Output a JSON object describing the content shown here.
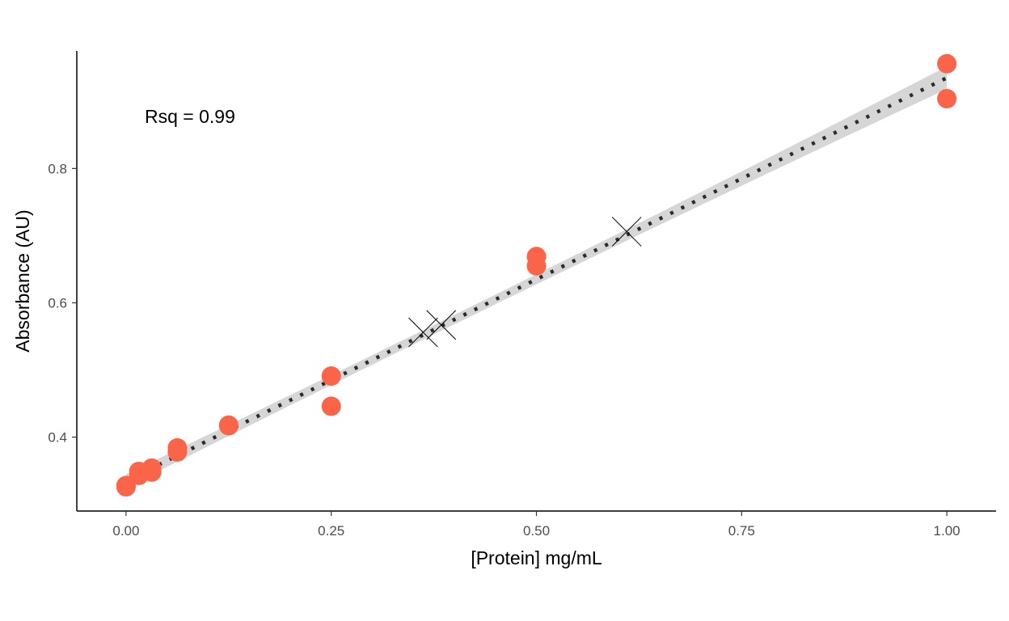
{
  "chart_data": {
    "type": "scatter",
    "xlabel": "[Protein] mg/mL",
    "ylabel": "Absorbance (AU)",
    "xlim": [
      -0.06,
      1.06
    ],
    "ylim": [
      0.29,
      0.975
    ],
    "x_ticks": [
      0.0,
      0.25,
      0.5,
      0.75,
      1.0
    ],
    "x_tick_labels": [
      "0.00",
      "0.25",
      "0.50",
      "0.75",
      "1.00"
    ],
    "y_ticks": [
      0.4,
      0.6,
      0.8
    ],
    "y_tick_labels": [
      "0.4",
      "0.6",
      "0.8"
    ],
    "grid": false,
    "annotation": "Rsq = 0.99",
    "series": [
      {
        "marker": "circle",
        "color": "#fa6448",
        "points": [
          {
            "x": 0.0,
            "y": 0.328
          },
          {
            "x": 0.0,
            "y": 0.326
          },
          {
            "x": 0.0156,
            "y": 0.349
          },
          {
            "x": 0.0156,
            "y": 0.343
          },
          {
            "x": 0.03125,
            "y": 0.354
          },
          {
            "x": 0.03125,
            "y": 0.348
          },
          {
            "x": 0.0625,
            "y": 0.384
          },
          {
            "x": 0.0625,
            "y": 0.378
          },
          {
            "x": 0.125,
            "y": 0.418
          },
          {
            "x": 0.125,
            "y": 0.417
          },
          {
            "x": 0.25,
            "y": 0.491
          },
          {
            "x": 0.25,
            "y": 0.446
          },
          {
            "x": 0.5,
            "y": 0.669
          },
          {
            "x": 0.5,
            "y": 0.655
          },
          {
            "x": 1.0,
            "y": 0.956
          },
          {
            "x": 1.0,
            "y": 0.904
          }
        ]
      },
      {
        "marker": "x",
        "color": "#000000",
        "points": [
          {
            "x": 0.362,
            "y": 0.556
          },
          {
            "x": 0.384,
            "y": 0.567
          },
          {
            "x": 0.61,
            "y": 0.706
          }
        ]
      }
    ],
    "fit": {
      "type": "linear",
      "intercept": 0.335,
      "slope": 0.6,
      "line_style": "dotted",
      "line_color": "#2b2b2b",
      "ribbon_color": "#d6d6d6"
    }
  }
}
